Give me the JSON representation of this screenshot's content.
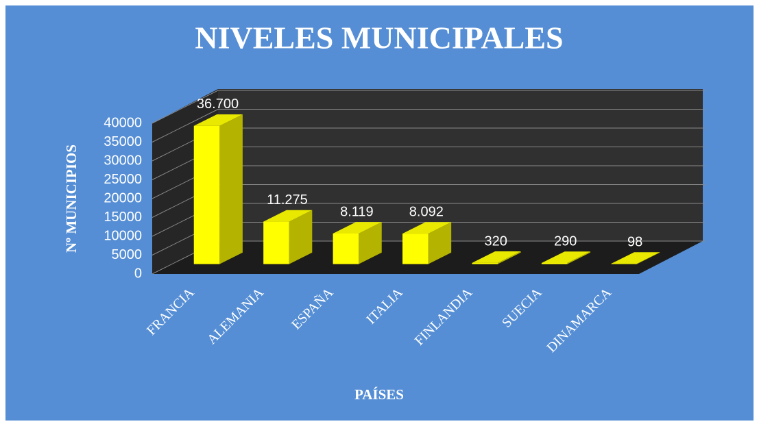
{
  "chart_data": {
    "type": "bar3d",
    "title": "NIVELES MUNICIPALES",
    "x_label": "PAÍSES",
    "y_label": "Nº MUNICIPIOS",
    "categories": [
      "FRANCIA",
      "ALEMANIA",
      "ESPAÑA",
      "ITALIA",
      "FINLANDIA",
      "SUECIA",
      "DINAMARCA"
    ],
    "values": [
      36700,
      11275,
      8119,
      8092,
      320,
      290,
      98
    ],
    "value_labels": [
      "36.700",
      "11.275",
      "8.119",
      "8.092",
      "320",
      "290",
      "98"
    ],
    "color": "#ffff00",
    "ylim": [
      0,
      40000
    ],
    "yticks": [
      0,
      5000,
      10000,
      15000,
      20000,
      25000,
      30000,
      35000,
      40000
    ],
    "grid": true
  }
}
